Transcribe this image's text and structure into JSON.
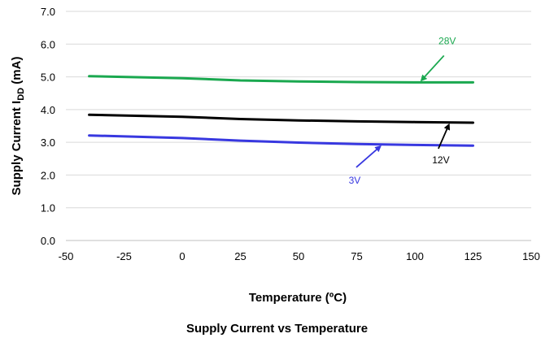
{
  "chart_data": {
    "type": "line",
    "title": "Supply Current vs Temperature",
    "xlabel": "Temperature (ºC)",
    "ylabel_main": "Supply Current I",
    "ylabel_sub": "DD",
    "ylabel_unit": " (mA)",
    "xlim": [
      -50,
      150
    ],
    "ylim": [
      0,
      7
    ],
    "x_ticks": [
      "-50",
      "-25",
      "0",
      "25",
      "50",
      "75",
      "100",
      "125",
      "150"
    ],
    "y_ticks": [
      "0.0",
      "1.0",
      "2.0",
      "3.0",
      "4.0",
      "5.0",
      "6.0",
      "7.0"
    ],
    "grid": "horizontal",
    "series": [
      {
        "name": "28V",
        "color": "#1aa84f",
        "x": [
          -40,
          0,
          25,
          50,
          75,
          100,
          125
        ],
        "y": [
          5.02,
          4.96,
          4.89,
          4.86,
          4.84,
          4.83,
          4.83
        ]
      },
      {
        "name": "12V",
        "color": "#000000",
        "x": [
          -40,
          0,
          25,
          50,
          75,
          100,
          125
        ],
        "y": [
          3.84,
          3.78,
          3.71,
          3.67,
          3.64,
          3.62,
          3.6
        ]
      },
      {
        "name": "3V",
        "color": "#3838e0",
        "x": [
          -40,
          0,
          25,
          50,
          75,
          100,
          125
        ],
        "y": [
          3.21,
          3.13,
          3.05,
          2.99,
          2.95,
          2.92,
          2.9
        ]
      }
    ],
    "annotations": [
      {
        "text": "28V",
        "color": "#1aa84f",
        "arrow_to": [
          102,
          4.83
        ]
      },
      {
        "text": "12V",
        "color": "#000000",
        "arrow_to": [
          115,
          3.6
        ]
      },
      {
        "text": "3V",
        "color": "#3838e0",
        "arrow_to": [
          86,
          2.93
        ]
      }
    ]
  }
}
